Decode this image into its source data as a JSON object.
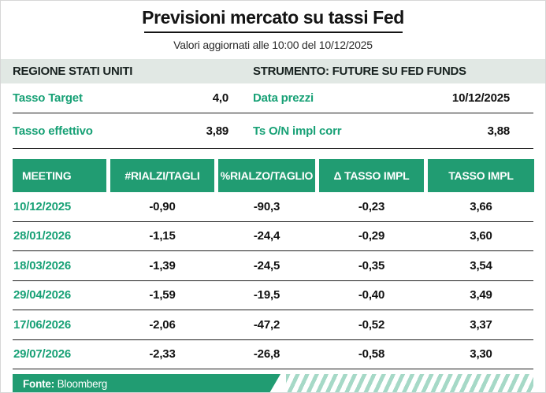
{
  "chart_data": {
    "type": "table",
    "title": "Previsioni mercato su tassi Fed",
    "subtitle": "Valori aggiornati alle 10:00 del 10/12/2025",
    "region_label": "REGIONE STATI UNITI",
    "instrument_label": "STRUMENTO: FUTURE SU FED FUNDS",
    "summary": [
      {
        "label_left": "Tasso Target",
        "value_left": "4,0",
        "label_right": "Data prezzi",
        "value_right": "10/12/2025"
      },
      {
        "label_left": "Tasso effettivo",
        "value_left": "3,89",
        "label_right": "Ts O/N impl corr",
        "value_right": "3,88"
      }
    ],
    "columns": [
      "MEETING",
      "#RIALZI/TAGLI",
      "%RIALZO/TAGLIO",
      "Δ TASSO IMPL",
      "TASSO IMPL"
    ],
    "rows": [
      [
        "10/12/2025",
        "-0,90",
        "-90,3",
        "-0,23",
        "3,66"
      ],
      [
        "28/01/2026",
        "-1,15",
        "-24,4",
        "-0,29",
        "3,60"
      ],
      [
        "18/03/2026",
        "-1,39",
        "-24,5",
        "-0,35",
        "3,54"
      ],
      [
        "29/04/2026",
        "-1,59",
        "-19,5",
        "-0,40",
        "3,49"
      ],
      [
        "17/06/2026",
        "-2,06",
        "-47,2",
        "-0,52",
        "3,37"
      ],
      [
        "29/07/2026",
        "-2,33",
        "-26,8",
        "-0,58",
        "3,30"
      ]
    ],
    "source_label": "Fonte:",
    "source_name": "Bloomberg"
  },
  "colors": {
    "green": "#219c72",
    "text_green": "#18a176",
    "section_bar_bg": "#e1e8e4",
    "stripe": "#a6d9c7",
    "divider": "#1f1f1f"
  }
}
